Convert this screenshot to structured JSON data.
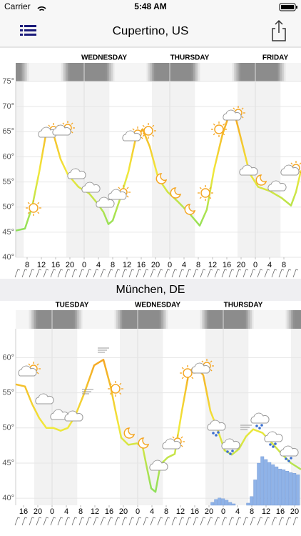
{
  "status_bar": {
    "carrier": "Carrier",
    "time": "5:48 AM"
  },
  "chart_data": [
    {
      "type": "line",
      "title": "Cupertino, US",
      "days": [
        {
          "name": "WEDNESDAY",
          "start": 16
        },
        {
          "name": "THURSDAY",
          "start": 40
        },
        {
          "name": "FRIDAY",
          "start": 64
        }
      ],
      "x": [
        -3.2,
        -0.6,
        1.4,
        3.4,
        5.4,
        7.4,
        9.4,
        11.4,
        14.4,
        17.4,
        19.4,
        21.4,
        22.8,
        24,
        26,
        28.4,
        30.4,
        32.4,
        34.4,
        36.8,
        39.4,
        42.4,
        45.4,
        48.4,
        50.4,
        52.4,
        54.8,
        56.8,
        58.4,
        60.4,
        62.4,
        64.8,
        68,
        71.4,
        74,
        75.4,
        76.8
      ],
      "values": [
        45.3,
        45.7,
        50,
        57,
        65,
        64.5,
        59.5,
        56.5,
        54,
        52.7,
        51,
        49,
        46.6,
        47.3,
        51.5,
        57,
        63.5,
        65.5,
        62,
        55.7,
        53,
        51,
        48.8,
        46.3,
        49.5,
        57.4,
        64.5,
        68.7,
        68,
        62.4,
        56.7,
        54,
        53.2,
        51.8,
        50.3,
        53,
        57.3
      ],
      "gradient": [
        "#f5a623",
        "#f2e83a",
        "#8ee05a"
      ],
      "xlim": [
        -3.2,
        76.8
      ],
      "xticks": [
        {
          "value": 0,
          "label": "8"
        },
        {
          "value": 4,
          "label": "12"
        },
        {
          "value": 8,
          "label": "16"
        },
        {
          "value": 12,
          "label": "20"
        },
        {
          "value": 16,
          "label": "0"
        },
        {
          "value": 20,
          "label": "4"
        },
        {
          "value": 24,
          "label": "8"
        },
        {
          "value": 28,
          "label": "12"
        },
        {
          "value": 32,
          "label": "16"
        },
        {
          "value": 36,
          "label": "20"
        },
        {
          "value": 40,
          "label": "0"
        },
        {
          "value": 44,
          "label": "4"
        },
        {
          "value": 48,
          "label": "8"
        },
        {
          "value": 52,
          "label": "12"
        },
        {
          "value": 56,
          "label": "16"
        },
        {
          "value": 60,
          "label": "20"
        },
        {
          "value": 64,
          "label": "0"
        },
        {
          "value": 68,
          "label": "4"
        },
        {
          "value": 72,
          "label": "8"
        }
      ],
      "ylim": [
        40,
        75
      ],
      "yticks": [
        {
          "value": 75,
          "label": "75°"
        },
        {
          "value": 70,
          "label": "70°"
        },
        {
          "value": 65,
          "label": "65°"
        },
        {
          "value": 60,
          "label": "60°"
        },
        {
          "value": 55,
          "label": "55°"
        },
        {
          "value": 50,
          "label": "50°"
        },
        {
          "value": 45,
          "label": "45°"
        },
        {
          "value": 40,
          "label": "40°"
        }
      ],
      "grid": true
    },
    {
      "type": "line",
      "title": "München, DE",
      "days": [
        {
          "name": "TUESDAY",
          "start": 8
        },
        {
          "name": "WEDNESDAY",
          "start": 32
        },
        {
          "name": "THURSDAY",
          "start": 56
        }
      ],
      "x": [
        -2.2,
        0.4,
        2.4,
        4.4,
        6.4,
        8.4,
        10.4,
        12.4,
        14.4,
        17,
        19.8,
        22.4,
        24.4,
        25.8,
        27.4,
        29.4,
        31.8,
        33.4,
        34.4,
        35.8,
        37,
        38.4,
        40.4,
        42.4,
        44.4,
        46.4,
        48.4,
        50.4,
        52.4,
        54.4,
        56.4,
        58.4,
        60.4,
        62.4,
        64.4,
        67,
        69.4,
        72.4,
        75,
        77.8
      ],
      "values": [
        56.2,
        55.9,
        53.4,
        51.4,
        50,
        50,
        49.6,
        50,
        51.6,
        54.9,
        58.9,
        59.7,
        55.9,
        52.4,
        48.6,
        47.6,
        47.8,
        47.3,
        44.8,
        41.4,
        40.9,
        44.8,
        45.8,
        46.3,
        52.4,
        58,
        58.7,
        57.5,
        52.4,
        49.8,
        46.8,
        46.2,
        47,
        48.8,
        49.8,
        49.3,
        48,
        46.3,
        45,
        44.1
      ],
      "gradient": [
        "#f5a623",
        "#f2e83a",
        "#8ee05a"
      ],
      "bars": {
        "axis": "y2",
        "color": "#8fb3e8",
        "x": [
          53,
          54,
          55,
          56,
          57,
          58,
          59,
          63,
          64,
          65,
          66,
          67,
          68,
          69,
          70,
          71,
          72,
          73,
          74,
          75,
          76,
          77
        ],
        "values": [
          0.4,
          0.8,
          1.0,
          0.9,
          0.7,
          0.4,
          0.2,
          0.3,
          1.2,
          3.5,
          5.8,
          6.7,
          6.3,
          5.9,
          5.6,
          5.3,
          5.0,
          4.9,
          4.7,
          4.5,
          4.4,
          4.2
        ]
      },
      "y2lim": [
        0,
        24
      ],
      "xlim": [
        -2.2,
        77.8
      ],
      "xticks": [
        {
          "value": 0,
          "label": "16"
        },
        {
          "value": 4,
          "label": "20"
        },
        {
          "value": 8,
          "label": "0"
        },
        {
          "value": 12,
          "label": "4"
        },
        {
          "value": 16,
          "label": "8"
        },
        {
          "value": 20,
          "label": "12"
        },
        {
          "value": 24,
          "label": "16"
        },
        {
          "value": 28,
          "label": "20"
        },
        {
          "value": 32,
          "label": "0"
        },
        {
          "value": 36,
          "label": "4"
        },
        {
          "value": 40,
          "label": "8"
        },
        {
          "value": 44,
          "label": "12"
        },
        {
          "value": 48,
          "label": "16"
        },
        {
          "value": 52,
          "label": "20"
        },
        {
          "value": 56,
          "label": "0"
        },
        {
          "value": 60,
          "label": "4"
        },
        {
          "value": 64,
          "label": "8"
        },
        {
          "value": 68,
          "label": "12"
        },
        {
          "value": 72,
          "label": "16"
        },
        {
          "value": 76,
          "label": "20"
        }
      ],
      "ylim": [
        39,
        63.8
      ],
      "yticks": [
        {
          "value": 60,
          "label": "60°"
        },
        {
          "value": 55,
          "label": "55°"
        },
        {
          "value": 50,
          "label": "50°"
        },
        {
          "value": 45,
          "label": "45°"
        },
        {
          "value": 40,
          "label": "40°"
        }
      ],
      "grid": true
    }
  ]
}
